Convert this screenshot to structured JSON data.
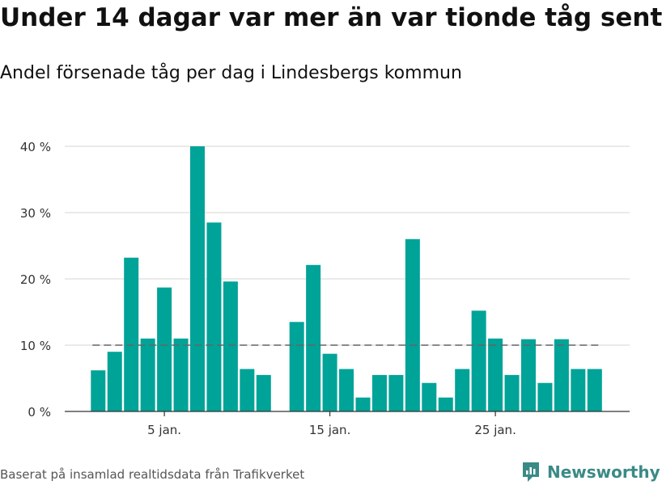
{
  "header": {
    "title": "Under 14 dagar var mer än var tionde tåg sent",
    "subtitle": "Andel försenade tåg per dag i Lindesbergs kommun"
  },
  "footer": {
    "source": "Baserat på insamlad realtidsdata från Trafikverket",
    "brand": "Newsworthy"
  },
  "colors": {
    "bar": "#00a398",
    "reference_line": "#666666",
    "grid": "#dddddd",
    "axis": "#333333",
    "brand": "#3a8a86"
  },
  "chart_data": {
    "type": "bar",
    "title": "Under 14 dagar var mer än var tionde tåg sent",
    "subtitle": "Andel försenade tåg per dag i Lindesbergs kommun",
    "xlabel": "",
    "ylabel": "",
    "x": [
      "1 jan.",
      "2 jan.",
      "3 jan.",
      "4 jan.",
      "5 jan.",
      "6 jan.",
      "7 jan.",
      "8 jan.",
      "9 jan.",
      "10 jan.",
      "11 jan.",
      "12 jan.",
      "13 jan.",
      "14 jan.",
      "15 jan.",
      "16 jan.",
      "17 jan.",
      "18 jan.",
      "19 jan.",
      "20 jan.",
      "21 jan.",
      "22 jan.",
      "23 jan.",
      "24 jan.",
      "25 jan.",
      "26 jan.",
      "27 jan.",
      "28 jan.",
      "29 jan.",
      "30 jan.",
      "31 jan."
    ],
    "values": [
      6.2,
      9.0,
      23.2,
      11.0,
      18.7,
      11.0,
      40.0,
      28.5,
      19.6,
      6.4,
      5.5,
      null,
      13.5,
      22.1,
      8.7,
      6.4,
      2.1,
      5.5,
      5.5,
      26.0,
      4.3,
      2.1,
      6.4,
      15.2,
      11.0,
      5.5,
      10.9,
      4.3,
      10.9,
      6.4,
      6.4
    ],
    "reference_line": {
      "value": 10,
      "style": "dashed"
    },
    "ylim": [
      0,
      40
    ],
    "yticks": [
      0,
      10,
      20,
      30,
      40
    ],
    "ytick_labels": [
      "0 %",
      "10 %",
      "20 %",
      "30 %",
      "40 %"
    ],
    "xticks": [
      5,
      15,
      25
    ],
    "xtick_labels": [
      "5 jan.",
      "15 jan.",
      "25 jan."
    ],
    "grid": "horizontal",
    "legend": "none"
  }
}
